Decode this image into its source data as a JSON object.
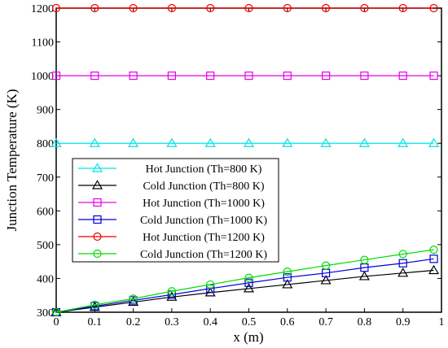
{
  "chart_data": {
    "type": "line",
    "xlabel": "x (m)",
    "ylabel": "Junction Temperature (K)",
    "xlim": [
      0,
      1
    ],
    "ylim": [
      300,
      1200
    ],
    "xticks": [
      0,
      0.1,
      0.2,
      0.3,
      0.4,
      0.5,
      0.6,
      0.7,
      0.8,
      0.9,
      1
    ],
    "xtick_labels": [
      "0",
      "0.1",
      "0.2",
      "0.3",
      "0.4",
      "0.5",
      "0.6",
      "0.7",
      "0.8",
      "0.9",
      "1"
    ],
    "yticks": [
      300,
      400,
      500,
      600,
      700,
      800,
      900,
      1000,
      1100,
      1200
    ],
    "ytick_labels": [
      "300",
      "400",
      "500",
      "600",
      "700",
      "800",
      "900",
      "1000",
      "1100",
      "1200"
    ],
    "grid": false,
    "legend_position": "lower-left",
    "x": [
      0,
      0.1,
      0.2,
      0.3,
      0.4,
      0.5,
      0.6,
      0.7,
      0.8,
      0.9,
      0.98
    ],
    "series": [
      {
        "name": "Hot Junction (Th=800 K)",
        "color": "#00e5e5",
        "marker": "triangle",
        "values": [
          800,
          800,
          800,
          800,
          800,
          800,
          800,
          800,
          800,
          800,
          800
        ]
      },
      {
        "name": "Cold Junction (Th=800 K)",
        "color": "#000000",
        "marker": "triangle",
        "values": [
          300,
          315,
          330,
          345,
          358,
          370,
          382,
          394,
          406,
          416,
          424
        ]
      },
      {
        "name": "Hot Junction (Th=1000 K)",
        "color": "#e600e6",
        "marker": "square",
        "values": [
          1000,
          1000,
          1000,
          1000,
          1000,
          1000,
          1000,
          1000,
          1000,
          1000,
          1000
        ]
      },
      {
        "name": "Cold Junction (Th=1000 K)",
        "color": "#0000dd",
        "marker": "square",
        "values": [
          300,
          318,
          335,
          352,
          370,
          387,
          403,
          416,
          432,
          445,
          458
        ]
      },
      {
        "name": "Hot Junction (Th=1200 K)",
        "color": "#ee0000",
        "marker": "circle",
        "values": [
          1200,
          1200,
          1200,
          1200,
          1200,
          1200,
          1200,
          1200,
          1200,
          1200,
          1200
        ]
      },
      {
        "name": "Cold Junction (Th=1200 K)",
        "color": "#00dd00",
        "marker": "circle",
        "values": [
          300,
          322,
          340,
          362,
          382,
          402,
          420,
          438,
          455,
          472,
          485
        ]
      }
    ]
  }
}
